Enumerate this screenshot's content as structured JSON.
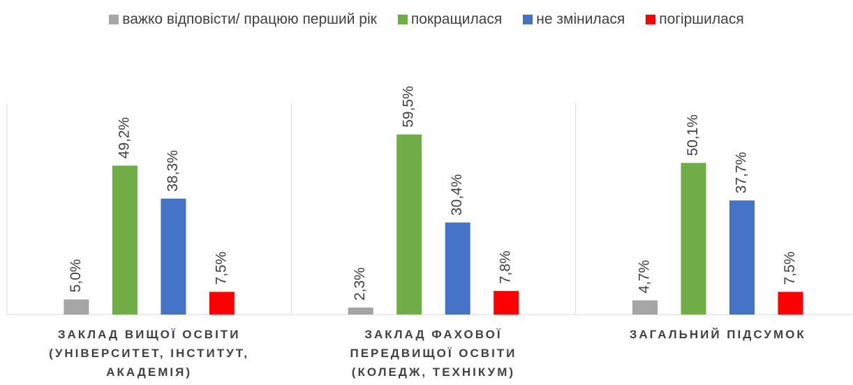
{
  "chart_data": {
    "type": "bar",
    "categories": [
      "ЗАКЛАД ВИЩОЇ ОСВІТИ (УНІВЕРСИТЕТ, ІНСТИТУТ, АКАДЕМІЯ)",
      "ЗАКЛАД ФАХОВОЇ ПЕРЕДВИЩОЇ ОСВІТИ (КОЛЕДЖ, ТЕХНІКУМ)",
      "ЗАГАЛЬНИЙ ПІДСУМОК"
    ],
    "series": [
      {
        "name": "важко відповісти/ працюю перший рік",
        "color": "#a5a5a5",
        "values": [
          5.0,
          2.3,
          4.7
        ],
        "value_labels": [
          "5,0%",
          "2,3%",
          "4,7%"
        ]
      },
      {
        "name": "покращилася",
        "color": "#70ad47",
        "values": [
          49.2,
          59.5,
          50.1
        ],
        "value_labels": [
          "49,2%",
          "59,5%",
          "50,1%"
        ]
      },
      {
        "name": "не змінилася",
        "color": "#4472c4",
        "values": [
          38.3,
          30.4,
          37.7
        ],
        "value_labels": [
          "38,3%",
          "30,4%",
          "37,7%"
        ]
      },
      {
        "name": "погіршилася",
        "color": "#ff0000",
        "values": [
          7.5,
          7.8,
          7.5
        ],
        "value_labels": [
          "7,5%",
          "7,8%",
          "7,5%"
        ]
      }
    ],
    "legend": "top"
  }
}
